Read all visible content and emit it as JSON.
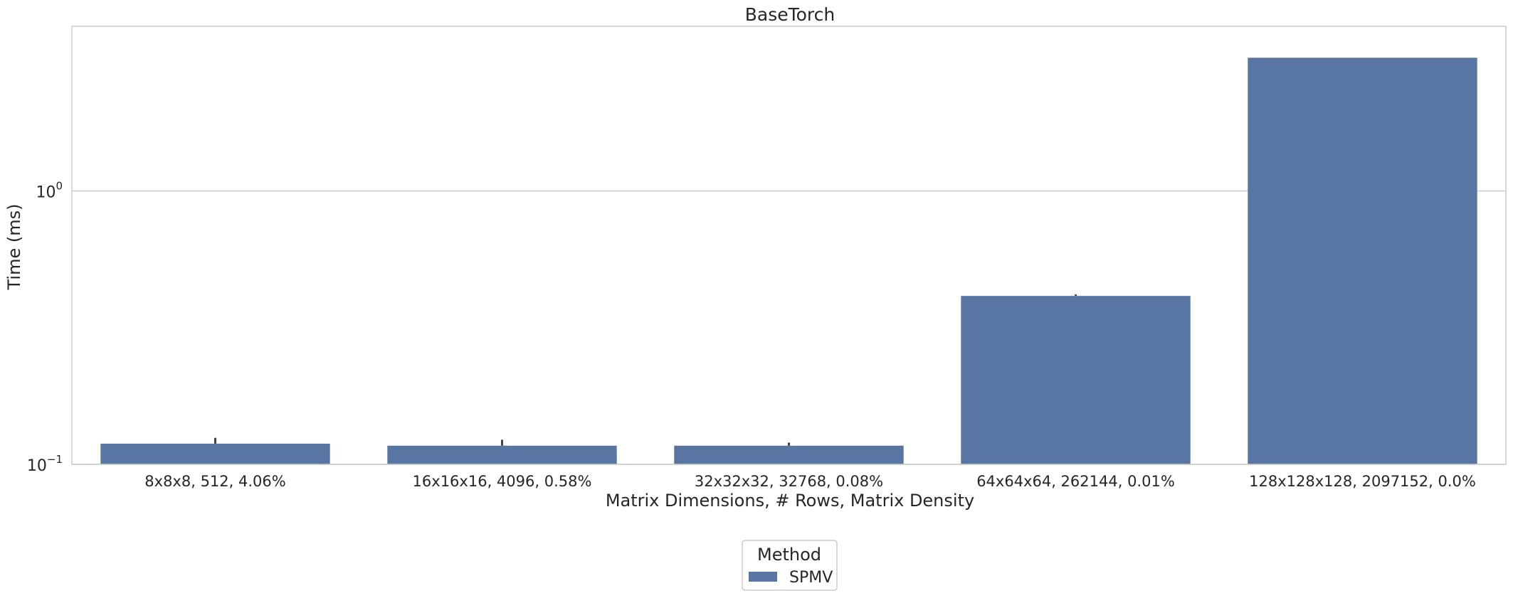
{
  "chart_data": {
    "type": "bar",
    "title": "BaseTorch",
    "xlabel": "Matrix Dimensions, # Rows, Matrix Density",
    "ylabel": "Time (ms)",
    "yscale": "log",
    "ylim": [
      0.1,
      4.0
    ],
    "yticks": [
      {
        "value": 0.1,
        "base": "10",
        "exp": "−1"
      },
      {
        "value": 1,
        "base": "10",
        "exp": "0"
      }
    ],
    "grid": true,
    "categories": [
      "8x8x8, 512, 4.06%",
      "16x16x16, 4096, 0.58%",
      "32x32x32, 32768, 0.08%",
      "64x64x64, 262144, 0.01%",
      "128x128x128, 2097152, 0.0%"
    ],
    "series": [
      {
        "name": "SPMV",
        "color": "#5975a4",
        "values": [
          0.119,
          0.117,
          0.117,
          0.413,
          3.07
        ],
        "error_high": [
          0.125,
          0.123,
          0.12,
          0.418,
          3.07
        ]
      }
    ],
    "legend": {
      "title": "Method",
      "placement": "bottom-center"
    }
  }
}
